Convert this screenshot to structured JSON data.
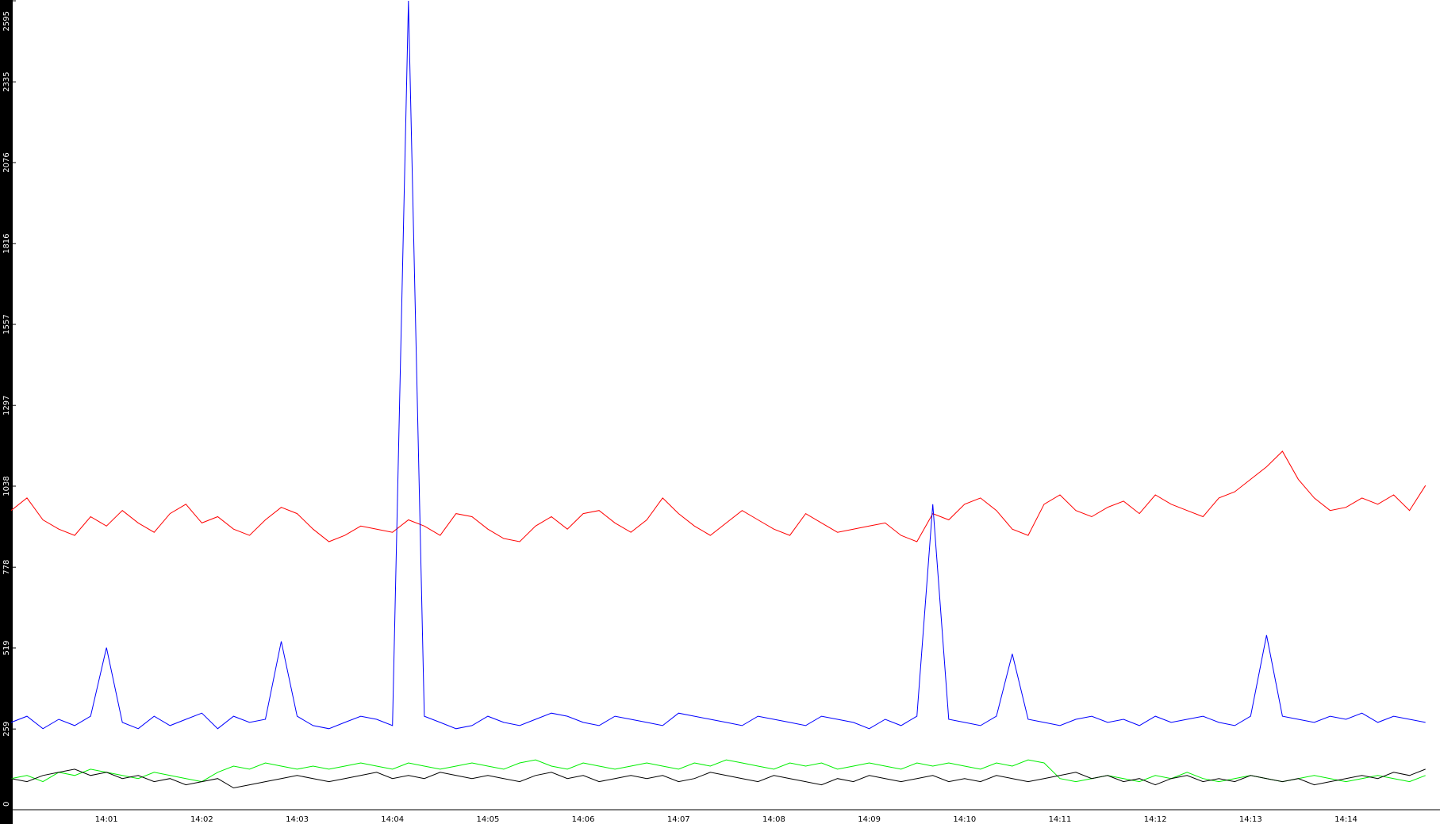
{
  "chart_data": {
    "type": "line",
    "categories": [
      null,
      null,
      null,
      null,
      null,
      null,
      "14:01",
      null,
      null,
      null,
      null,
      null,
      "14:02",
      null,
      null,
      null,
      null,
      null,
      "14:03",
      null,
      null,
      null,
      null,
      null,
      "14:04",
      null,
      null,
      null,
      null,
      null,
      "14:05",
      null,
      null,
      null,
      null,
      null,
      "14:06",
      null,
      null,
      null,
      null,
      null,
      "14:07",
      null,
      null,
      null,
      null,
      null,
      "14:08",
      null,
      null,
      null,
      null,
      null,
      "14:09",
      null,
      null,
      null,
      null,
      null,
      "14:10",
      null,
      null,
      null,
      null,
      null,
      "14:11",
      null,
      null,
      null,
      null,
      null,
      "14:12",
      null,
      null,
      null,
      null,
      null,
      "14:13",
      null,
      null,
      null,
      null,
      null,
      "14:14",
      null,
      null,
      null,
      null,
      null
    ],
    "series": [
      {
        "color": "#ff0000",
        "values": [
          960,
          1000,
          930,
          900,
          880,
          940,
          910,
          960,
          920,
          890,
          950,
          980,
          920,
          940,
          900,
          880,
          930,
          970,
          950,
          900,
          860,
          880,
          910,
          900,
          890,
          930,
          910,
          880,
          950,
          940,
          900,
          870,
          860,
          910,
          940,
          900,
          950,
          960,
          920,
          890,
          930,
          1000,
          950,
          910,
          880,
          920,
          960,
          930,
          900,
          880,
          950,
          920,
          890,
          900,
          910,
          920,
          880,
          860,
          950,
          930,
          980,
          1000,
          960,
          900,
          880,
          980,
          1010,
          960,
          940,
          970,
          990,
          950,
          1010,
          980,
          960,
          940,
          1000,
          1020,
          1060,
          1100,
          1150,
          1060,
          1000,
          960,
          970,
          1000,
          980,
          1010,
          960,
          1040
        ]
      },
      {
        "color": "#0000ff",
        "values": [
          280,
          300,
          260,
          290,
          270,
          300,
          520,
          280,
          260,
          300,
          270,
          290,
          310,
          260,
          300,
          280,
          290,
          540,
          300,
          270,
          260,
          280,
          300,
          290,
          270,
          2595,
          300,
          280,
          260,
          270,
          300,
          280,
          270,
          290,
          310,
          300,
          280,
          270,
          300,
          290,
          280,
          270,
          310,
          300,
          290,
          280,
          270,
          300,
          290,
          280,
          270,
          300,
          290,
          280,
          260,
          290,
          270,
          300,
          980,
          290,
          280,
          270,
          300,
          500,
          290,
          280,
          270,
          290,
          300,
          280,
          290,
          270,
          300,
          280,
          290,
          300,
          280,
          270,
          300,
          560,
          300,
          290,
          280,
          300,
          290,
          310,
          280,
          300,
          290,
          280
        ]
      },
      {
        "color": "#00ee00",
        "values": [
          100,
          110,
          90,
          120,
          110,
          130,
          120,
          110,
          100,
          120,
          110,
          100,
          90,
          120,
          140,
          130,
          150,
          140,
          130,
          140,
          130,
          140,
          150,
          140,
          130,
          150,
          140,
          130,
          140,
          150,
          140,
          130,
          150,
          160,
          140,
          130,
          150,
          140,
          130,
          140,
          150,
          140,
          130,
          150,
          140,
          160,
          150,
          140,
          130,
          150,
          140,
          150,
          130,
          140,
          150,
          140,
          130,
          150,
          140,
          150,
          140,
          130,
          150,
          140,
          160,
          150,
          100,
          90,
          100,
          110,
          100,
          90,
          110,
          100,
          120,
          100,
          90,
          100,
          110,
          100,
          90,
          100,
          110,
          100,
          90,
          100,
          110,
          100,
          90,
          110
        ]
      },
      {
        "color": "#000000",
        "values": [
          100,
          90,
          110,
          120,
          130,
          110,
          120,
          100,
          110,
          90,
          100,
          80,
          90,
          100,
          70,
          80,
          90,
          100,
          110,
          100,
          90,
          100,
          110,
          120,
          100,
          110,
          100,
          120,
          110,
          100,
          110,
          100,
          90,
          110,
          120,
          100,
          110,
          90,
          100,
          110,
          100,
          110,
          90,
          100,
          120,
          110,
          100,
          90,
          110,
          100,
          90,
          80,
          100,
          90,
          110,
          100,
          90,
          100,
          110,
          90,
          100,
          90,
          110,
          100,
          90,
          100,
          110,
          120,
          100,
          110,
          90,
          100,
          80,
          100,
          110,
          90,
          100,
          90,
          110,
          100,
          90,
          100,
          80,
          90,
          100,
          110,
          100,
          120,
          110,
          130
        ]
      }
    ],
    "ylim": [
      0,
      2595
    ],
    "yticks": [
      0,
      259,
      519,
      778,
      1038,
      1297,
      1557,
      1816,
      2076,
      2335,
      2595
    ]
  }
}
